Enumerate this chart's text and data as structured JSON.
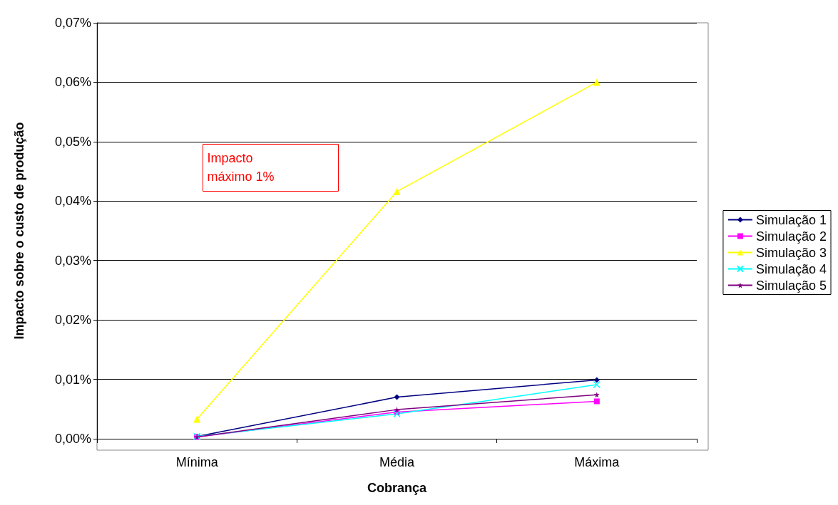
{
  "chart_data": {
    "type": "line",
    "xlabel": "Cobrança",
    "ylabel": "Impacto sobre o custo de produção",
    "categories": [
      "Mínima",
      "Média",
      "Máxima"
    ],
    "series": [
      {
        "name": "Simulação 1",
        "color": "#000080",
        "marker": "diamond",
        "values": [
          0.0004,
          0.007,
          0.0099
        ]
      },
      {
        "name": "Simulação 2",
        "color": "#ff00ff",
        "marker": "square",
        "values": [
          0.0003,
          0.0045,
          0.0063
        ]
      },
      {
        "name": "Simulação 3",
        "color": "#ffff00",
        "marker": "triangle",
        "values": [
          0.0033,
          0.0416,
          0.06
        ]
      },
      {
        "name": "Simulação 4",
        "color": "#00ffff",
        "marker": "cross",
        "values": [
          0.0004,
          0.0042,
          0.0091
        ]
      },
      {
        "name": "Simulação 5",
        "color": "#800080",
        "marker": "star",
        "values": [
          0.0003,
          0.0049,
          0.0074
        ]
      }
    ],
    "ylim": [
      0,
      0.07
    ],
    "yticks": [
      {
        "value": 0,
        "label": "0,00%"
      },
      {
        "value": 0.01,
        "label": "0,01%"
      },
      {
        "value": 0.02,
        "label": "0,02%"
      },
      {
        "value": 0.03,
        "label": "0,03%"
      },
      {
        "value": 0.04,
        "label": "0,04%"
      },
      {
        "value": 0.05,
        "label": "0,05%"
      },
      {
        "value": 0.06,
        "label": "0,06%"
      },
      {
        "value": 0.07,
        "label": "0,07%"
      }
    ],
    "grid": "y",
    "legend": "right",
    "line_style": "solid",
    "annotations": [
      "Impacto máximo 1%"
    ]
  }
}
